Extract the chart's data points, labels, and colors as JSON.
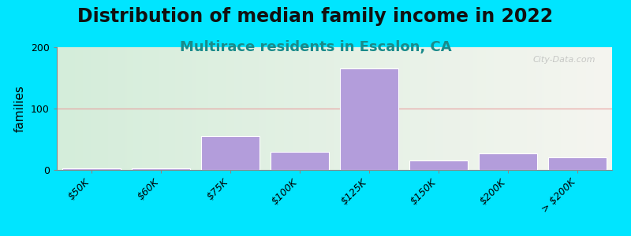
{
  "title": "Distribution of median family income in 2022",
  "subtitle": "Multirace residents in Escalon, CA",
  "ylabel": "families",
  "categories": [
    "$50K",
    "$60K",
    "$75K",
    "$100K",
    "$125K",
    "$150K",
    "$200K",
    "> $200K"
  ],
  "values": [
    2,
    2,
    55,
    30,
    165,
    15,
    27,
    20
  ],
  "bar_color": "#b39ddb",
  "bar_edge_color": "#ffffff",
  "ylim": [
    0,
    200
  ],
  "yticks": [
    0,
    100,
    200
  ],
  "background_outer": "#00e5ff",
  "background_inner_left": "#d4edda",
  "background_inner_right": "#f5f5f0",
  "grid_color": "#e8a0a0",
  "title_fontsize": 17,
  "subtitle_fontsize": 13,
  "ylabel_fontsize": 11,
  "tick_fontsize": 9,
  "watermark": "City-Data.com"
}
